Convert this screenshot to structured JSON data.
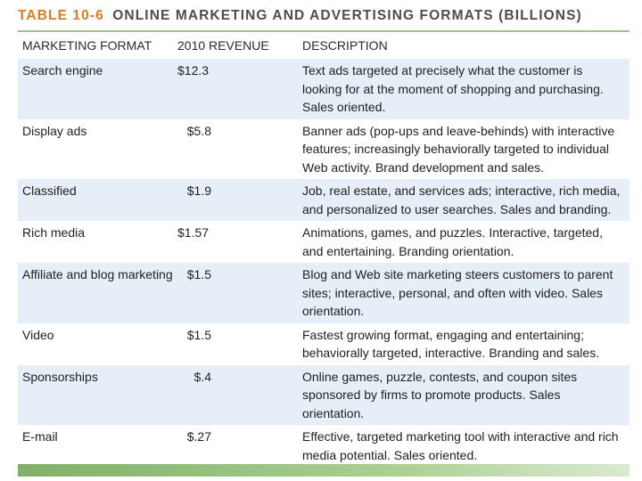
{
  "title": {
    "number": "TABLE 10-6",
    "text": "ONLINE MARKETING AND ADVERTISING FORMATS (BILLIONS)"
  },
  "table": {
    "headers": [
      "MARKETING FORMAT",
      "2010 REVENUE",
      "DESCRIPTION"
    ],
    "rows": [
      {
        "format": "Search engine",
        "revenue": "$12.3",
        "description": "Text ads targeted at precisely what the customer is looking for at the moment of shopping and purchasing. Sales oriented."
      },
      {
        "format": "Display ads",
        "revenue": "$5.8",
        "description": "Banner ads (pop-ups and leave-behinds) with interactive features; increasingly behaviorally targeted to individual Web activity. Brand development and sales."
      },
      {
        "format": "Classified",
        "revenue": "$1.9",
        "description": "Job, real estate, and services ads; interactive, rich media, and personalized to user searches. Sales and branding."
      },
      {
        "format": "Rich media",
        "revenue": "$1.57",
        "description": "Animations, games, and puzzles. Interactive, targeted, and entertaining. Branding orientation."
      },
      {
        "format": "Affiliate and blog marketing",
        "revenue": "$1.5",
        "description": "Blog and Web site marketing steers customers to parent sites; interactive, personal, and often with video. Sales orientation."
      },
      {
        "format": "Video",
        "revenue": "$1.5",
        "description": "Fastest growing format, engaging and entertaining; behaviorally targeted, interactive. Branding and sales."
      },
      {
        "format": "Sponsorships",
        "revenue": "$.4",
        "description": "Online games, puzzle, contests, and coupon sites sponsored by firms to promote products. Sales orientation."
      },
      {
        "format": "E-mail",
        "revenue": "$.27",
        "description": "Effective, targeted marketing tool with interactive and rich media potential. Sales oriented."
      }
    ]
  },
  "colors": {
    "title_number": "#e07a1f",
    "title_text": "#4d4d4f",
    "rule": "#9cc48c",
    "row_shade": "#e6eef8"
  }
}
